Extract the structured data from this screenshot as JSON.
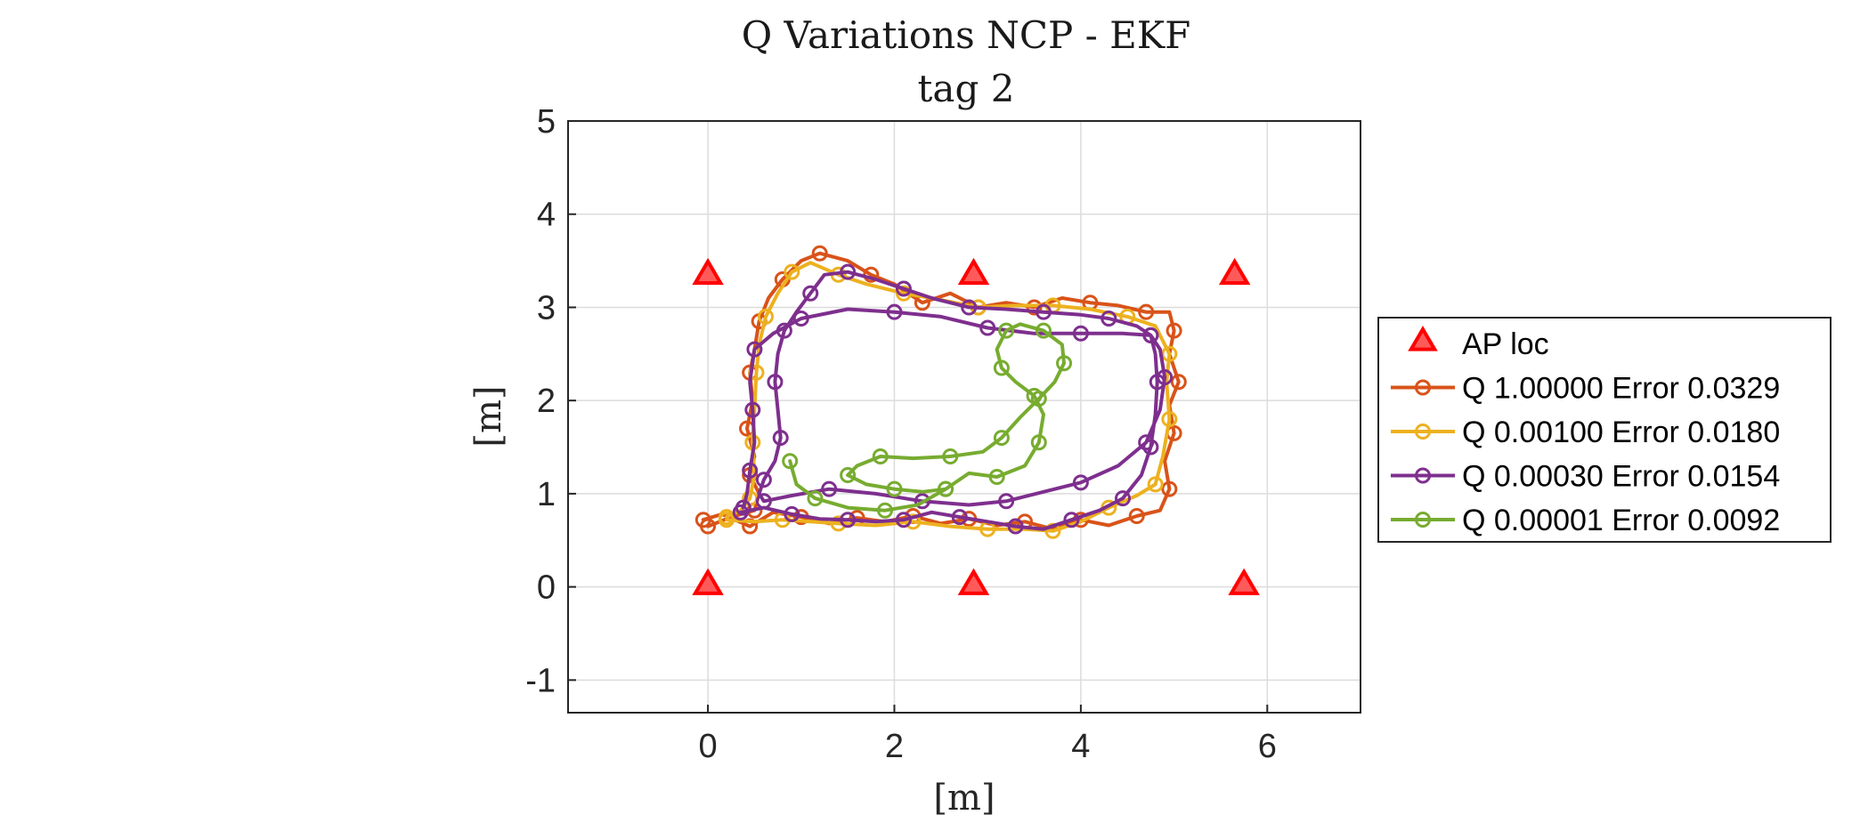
{
  "chart_data": {
    "type": "line",
    "title": "Q Variations NCP - EKF",
    "subtitle": "tag 2",
    "xlabel": "[m]",
    "ylabel": "[m]",
    "xlim": [
      -1.5,
      7
    ],
    "ylim": [
      -1.35,
      5
    ],
    "xticks": [
      0,
      2,
      4,
      6
    ],
    "yticks": [
      -1,
      0,
      1,
      2,
      3,
      4,
      5
    ],
    "grid": true,
    "legend_position": "right",
    "markers": {
      "name": "AP loc",
      "color": "#ff0000",
      "points": [
        [
          0,
          3.35
        ],
        [
          2.85,
          3.35
        ],
        [
          5.65,
          3.35
        ],
        [
          0,
          0.02
        ],
        [
          2.85,
          0.02
        ],
        [
          5.75,
          0.02
        ]
      ]
    },
    "series": [
      {
        "name": "Q 1.00000 Error 0.0329",
        "color": "#d95319",
        "points": [
          [
            -0.05,
            0.72
          ],
          [
            0.15,
            0.78
          ],
          [
            0.45,
            0.65
          ],
          [
            0.7,
            0.8
          ],
          [
            1.0,
            0.75
          ],
          [
            1.3,
            0.68
          ],
          [
            1.6,
            0.74
          ],
          [
            1.9,
            0.7
          ],
          [
            2.2,
            0.76
          ],
          [
            2.5,
            0.68
          ],
          [
            2.8,
            0.73
          ],
          [
            3.1,
            0.66
          ],
          [
            3.4,
            0.7
          ],
          [
            3.7,
            0.62
          ],
          [
            4.0,
            0.72
          ],
          [
            4.3,
            0.66
          ],
          [
            4.6,
            0.76
          ],
          [
            4.85,
            0.82
          ],
          [
            4.95,
            1.05
          ],
          [
            4.9,
            1.35
          ],
          [
            5.0,
            1.65
          ],
          [
            4.95,
            1.95
          ],
          [
            5.05,
            2.2
          ],
          [
            4.95,
            2.5
          ],
          [
            5.0,
            2.75
          ],
          [
            4.95,
            2.95
          ],
          [
            4.7,
            2.95
          ],
          [
            4.4,
            3.02
          ],
          [
            4.1,
            3.05
          ],
          [
            3.8,
            3.1
          ],
          [
            3.5,
            3.0
          ],
          [
            3.2,
            3.05
          ],
          [
            2.9,
            3.0
          ],
          [
            2.6,
            3.15
          ],
          [
            2.3,
            3.05
          ],
          [
            2.0,
            3.25
          ],
          [
            1.75,
            3.35
          ],
          [
            1.5,
            3.5
          ],
          [
            1.2,
            3.58
          ],
          [
            1.0,
            3.5
          ],
          [
            0.8,
            3.3
          ],
          [
            0.65,
            3.1
          ],
          [
            0.55,
            2.85
          ],
          [
            0.5,
            2.55
          ],
          [
            0.45,
            2.3
          ],
          [
            0.48,
            2.0
          ],
          [
            0.42,
            1.7
          ],
          [
            0.5,
            1.4
          ],
          [
            0.45,
            1.2
          ],
          [
            0.55,
            1.0
          ],
          [
            0.5,
            0.82
          ],
          [
            0.25,
            0.75
          ],
          [
            0.0,
            0.65
          ]
        ]
      },
      {
        "name": "Q 0.00100 Error 0.0180",
        "color": "#edb120",
        "points": [
          [
            0.2,
            0.72
          ],
          [
            0.5,
            0.7
          ],
          [
            0.8,
            0.72
          ],
          [
            1.1,
            0.7
          ],
          [
            1.4,
            0.68
          ],
          [
            1.8,
            0.66
          ],
          [
            2.2,
            0.7
          ],
          [
            2.6,
            0.65
          ],
          [
            3.0,
            0.62
          ],
          [
            3.4,
            0.62
          ],
          [
            3.7,
            0.6
          ],
          [
            4.0,
            0.7
          ],
          [
            4.3,
            0.85
          ],
          [
            4.6,
            0.98
          ],
          [
            4.8,
            1.1
          ],
          [
            4.88,
            1.4
          ],
          [
            4.95,
            1.8
          ],
          [
            4.92,
            2.2
          ],
          [
            4.95,
            2.5
          ],
          [
            4.8,
            2.8
          ],
          [
            4.5,
            2.9
          ],
          [
            4.1,
            2.98
          ],
          [
            3.7,
            3.02
          ],
          [
            3.3,
            3.02
          ],
          [
            2.9,
            3.0
          ],
          [
            2.5,
            3.08
          ],
          [
            2.1,
            3.15
          ],
          [
            1.7,
            3.25
          ],
          [
            1.4,
            3.35
          ],
          [
            1.1,
            3.48
          ],
          [
            0.9,
            3.38
          ],
          [
            0.75,
            3.15
          ],
          [
            0.62,
            2.9
          ],
          [
            0.55,
            2.6
          ],
          [
            0.52,
            2.3
          ],
          [
            0.5,
            1.9
          ],
          [
            0.48,
            1.55
          ],
          [
            0.5,
            1.2
          ],
          [
            0.45,
            0.95
          ],
          [
            0.35,
            0.82
          ],
          [
            0.2,
            0.75
          ]
        ]
      },
      {
        "name": "Q 0.00030 Error 0.0154",
        "color": "#7e2f8e",
        "points": [
          [
            0.35,
            0.8
          ],
          [
            0.6,
            0.85
          ],
          [
            0.9,
            0.78
          ],
          [
            1.2,
            0.73
          ],
          [
            1.5,
            0.72
          ],
          [
            1.8,
            0.7
          ],
          [
            2.1,
            0.72
          ],
          [
            2.4,
            0.8
          ],
          [
            2.7,
            0.75
          ],
          [
            3.0,
            0.7
          ],
          [
            3.3,
            0.65
          ],
          [
            3.6,
            0.62
          ],
          [
            3.9,
            0.72
          ],
          [
            4.2,
            0.82
          ],
          [
            4.45,
            0.95
          ],
          [
            4.65,
            1.2
          ],
          [
            4.75,
            1.5
          ],
          [
            4.8,
            1.85
          ],
          [
            4.82,
            2.2
          ],
          [
            4.8,
            2.5
          ],
          [
            4.75,
            2.7
          ],
          [
            4.6,
            2.8
          ],
          [
            4.3,
            2.88
          ],
          [
            4.0,
            2.92
          ],
          [
            3.6,
            2.95
          ],
          [
            3.2,
            2.98
          ],
          [
            2.8,
            3.0
          ],
          [
            2.4,
            3.1
          ],
          [
            2.1,
            3.2
          ],
          [
            1.8,
            3.3
          ],
          [
            1.5,
            3.38
          ],
          [
            1.25,
            3.35
          ],
          [
            1.1,
            3.15
          ],
          [
            0.95,
            2.95
          ],
          [
            0.82,
            2.75
          ],
          [
            0.75,
            2.5
          ],
          [
            0.72,
            2.2
          ],
          [
            0.75,
            1.9
          ],
          [
            0.78,
            1.6
          ],
          [
            0.72,
            1.35
          ],
          [
            0.6,
            1.15
          ],
          [
            0.55,
            1.0
          ],
          [
            0.6,
            0.92
          ],
          [
            0.9,
            0.98
          ],
          [
            1.3,
            1.05
          ],
          [
            1.8,
            1.0
          ],
          [
            2.3,
            0.92
          ],
          [
            2.8,
            0.88
          ],
          [
            3.2,
            0.92
          ],
          [
            3.6,
            1.02
          ],
          [
            4.0,
            1.12
          ],
          [
            4.4,
            1.3
          ],
          [
            4.7,
            1.55
          ],
          [
            4.85,
            1.9
          ],
          [
            4.9,
            2.25
          ],
          [
            4.85,
            2.55
          ],
          [
            4.75,
            2.7
          ],
          [
            4.45,
            2.72
          ],
          [
            4.0,
            2.72
          ],
          [
            3.5,
            2.72
          ],
          [
            3.0,
            2.78
          ],
          [
            2.5,
            2.9
          ],
          [
            2.0,
            2.95
          ],
          [
            1.5,
            2.98
          ],
          [
            1.0,
            2.88
          ],
          [
            0.7,
            2.72
          ],
          [
            0.5,
            2.55
          ],
          [
            0.45,
            2.2
          ],
          [
            0.48,
            1.9
          ],
          [
            0.5,
            1.55
          ],
          [
            0.45,
            1.25
          ],
          [
            0.42,
            1.0
          ],
          [
            0.38,
            0.85
          ]
        ]
      },
      {
        "name": "Q 0.00001 Error 0.0092",
        "color": "#77ac30",
        "points": [
          [
            0.88,
            1.35
          ],
          [
            0.95,
            1.1
          ],
          [
            1.15,
            0.95
          ],
          [
            1.5,
            0.85
          ],
          [
            1.9,
            0.82
          ],
          [
            2.25,
            0.88
          ],
          [
            2.55,
            1.05
          ],
          [
            2.8,
            1.22
          ],
          [
            3.1,
            1.18
          ],
          [
            3.4,
            1.3
          ],
          [
            3.55,
            1.55
          ],
          [
            3.6,
            1.85
          ],
          [
            3.5,
            2.05
          ],
          [
            3.3,
            2.2
          ],
          [
            3.15,
            2.35
          ],
          [
            3.1,
            2.55
          ],
          [
            3.2,
            2.75
          ],
          [
            3.35,
            2.82
          ],
          [
            3.6,
            2.75
          ],
          [
            3.8,
            2.6
          ],
          [
            3.82,
            2.4
          ],
          [
            3.72,
            2.2
          ],
          [
            3.55,
            2.02
          ],
          [
            3.35,
            1.82
          ],
          [
            3.15,
            1.6
          ],
          [
            2.95,
            1.45
          ],
          [
            2.6,
            1.4
          ],
          [
            2.2,
            1.38
          ],
          [
            1.85,
            1.4
          ],
          [
            1.6,
            1.3
          ],
          [
            1.5,
            1.2
          ],
          [
            1.7,
            1.1
          ],
          [
            2.0,
            1.05
          ],
          [
            2.3,
            1.02
          ],
          [
            2.55,
            1.05
          ]
        ]
      }
    ]
  }
}
